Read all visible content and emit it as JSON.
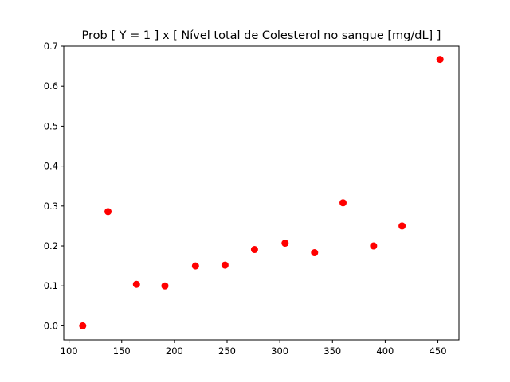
{
  "chart_data": {
    "type": "scatter",
    "title": "Prob [ Y = 1 ] x [ Nível total de Colesterol no sangue [mg/dL] ]",
    "xlabel": "",
    "ylabel": "",
    "xlim": [
      95,
      470
    ],
    "ylim": [
      -0.035,
      0.7
    ],
    "grid": false,
    "marker_color": "#ff0000",
    "x_ticks": [
      100,
      150,
      200,
      250,
      300,
      350,
      400,
      450
    ],
    "y_ticks": [
      0.0,
      0.1,
      0.2,
      0.3,
      0.4,
      0.5,
      0.6,
      0.7
    ],
    "x_tick_labels": [
      "100",
      "150",
      "200",
      "250",
      "300",
      "350",
      "400",
      "450"
    ],
    "y_tick_labels": [
      "0.0",
      "0.1",
      "0.2",
      "0.3",
      "0.4",
      "0.5",
      "0.6",
      "0.7"
    ],
    "points": [
      {
        "x": 113,
        "y": 0.0
      },
      {
        "x": 137,
        "y": 0.286
      },
      {
        "x": 164,
        "y": 0.104
      },
      {
        "x": 191,
        "y": 0.1
      },
      {
        "x": 220,
        "y": 0.15
      },
      {
        "x": 248,
        "y": 0.152
      },
      {
        "x": 276,
        "y": 0.191
      },
      {
        "x": 305,
        "y": 0.207
      },
      {
        "x": 333,
        "y": 0.183
      },
      {
        "x": 360,
        "y": 0.308
      },
      {
        "x": 389,
        "y": 0.2
      },
      {
        "x": 416,
        "y": 0.25
      },
      {
        "x": 452,
        "y": 0.667
      }
    ]
  }
}
